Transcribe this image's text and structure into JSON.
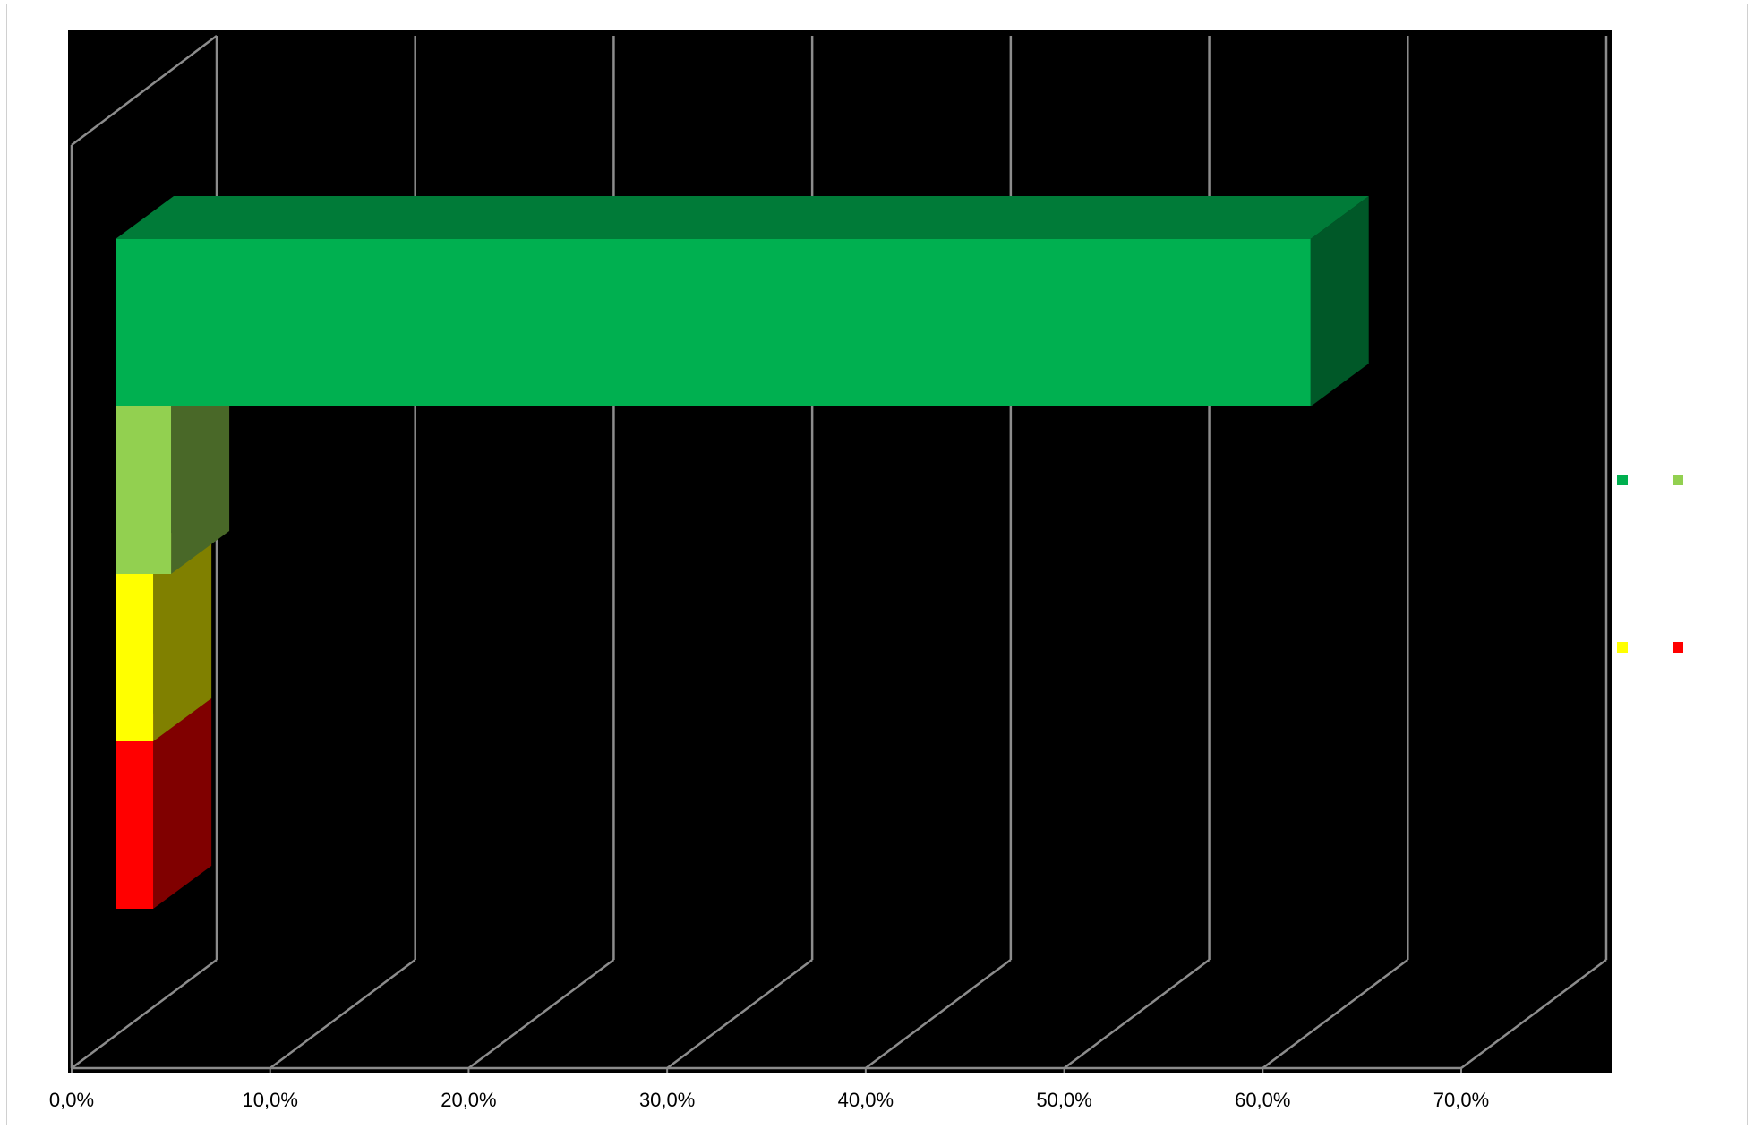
{
  "chart_data": {
    "type": "bar",
    "orientation": "horizontal",
    "style": "3d-stacked-clustered",
    "title": "",
    "xlabel": "",
    "ylabel": "",
    "xlim": [
      0,
      70
    ],
    "x_tick_labels": [
      "0,0%",
      "10,0%",
      "20,0%",
      "30,0%",
      "40,0%",
      "50,0%",
      "60,0%",
      "70,0%"
    ],
    "categories": [
      ""
    ],
    "series": [
      {
        "name": "++",
        "values": [
          60.2
        ],
        "color": "#00b050"
      },
      {
        "name": "+",
        "values": [
          2.8
        ],
        "color": "#92d050"
      },
      {
        "name": "-",
        "values": [
          1.9
        ],
        "color": "#ffff00"
      },
      {
        "name": "--",
        "values": [
          1.9
        ],
        "color": "#ff0000"
      }
    ],
    "grid": true,
    "background": "#000000",
    "legend": {
      "position": "right",
      "entries": [
        "++",
        "+",
        "-",
        "--"
      ]
    }
  }
}
